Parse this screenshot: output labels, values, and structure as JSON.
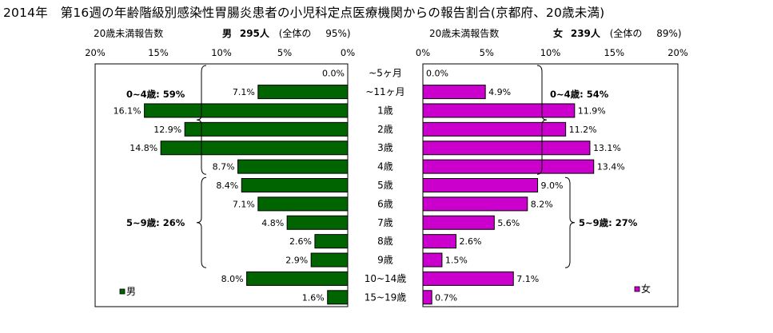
{
  "title": "2014年　第16週の年齢階級別感染性胃腸炎患者の小児科定点医療機関からの報告割合(京都府、20歳未満)",
  "left_header": {
    "caption": "20歳未満報告数",
    "sex": "男",
    "count": "295人",
    "share_label": "(全体の",
    "share_value": "95%)"
  },
  "right_header": {
    "caption": "20歳未満報告数",
    "sex": "女",
    "count": "239人",
    "share_label": "(全体の",
    "share_value": "89%)"
  },
  "legend": {
    "male": "男",
    "female": "女"
  },
  "chart_data": {
    "type": "bar",
    "orientation": "horizontal-population-pyramid",
    "categories": [
      "~5ヶ月",
      "~11ヶ月",
      "1歳",
      "2歳",
      "3歳",
      "4歳",
      "5歳",
      "6歳",
      "7歳",
      "8歳",
      "9歳",
      "10~14歳",
      "15~19歳"
    ],
    "xlim": [
      0,
      20
    ],
    "ticks": [
      "20%",
      "15%",
      "10%",
      "5%",
      "0%"
    ],
    "ticks_right": [
      "0%",
      "5%",
      "10%",
      "15%",
      "20%"
    ],
    "series": [
      {
        "name": "男",
        "color": "#006400",
        "values": [
          0.0,
          7.1,
          16.1,
          12.9,
          14.8,
          8.7,
          8.4,
          7.1,
          4.8,
          2.6,
          2.9,
          8.0,
          1.6
        ],
        "labels": [
          "0.0%",
          "7.1%",
          "16.1%",
          "12.9%",
          "14.8%",
          "8.7%",
          "8.4%",
          "7.1%",
          "4.8%",
          "2.6%",
          "2.9%",
          "8.0%",
          "1.6%"
        ],
        "group_labels": [
          "0~4歳: 59%",
          "5~9歳: 26%"
        ]
      },
      {
        "name": "女",
        "color": "#cc00cc",
        "values": [
          0.0,
          4.9,
          11.9,
          11.2,
          13.1,
          13.4,
          9.0,
          8.2,
          5.6,
          2.6,
          1.5,
          7.1,
          0.7
        ],
        "labels": [
          "0.0%",
          "4.9%",
          "11.9%",
          "11.2%",
          "13.1%",
          "13.4%",
          "9.0%",
          "8.2%",
          "5.6%",
          "2.6%",
          "1.5%",
          "7.1%",
          "0.7%"
        ],
        "group_labels": [
          "0~4歳: 54%",
          "5~9歳: 27%"
        ]
      }
    ]
  }
}
